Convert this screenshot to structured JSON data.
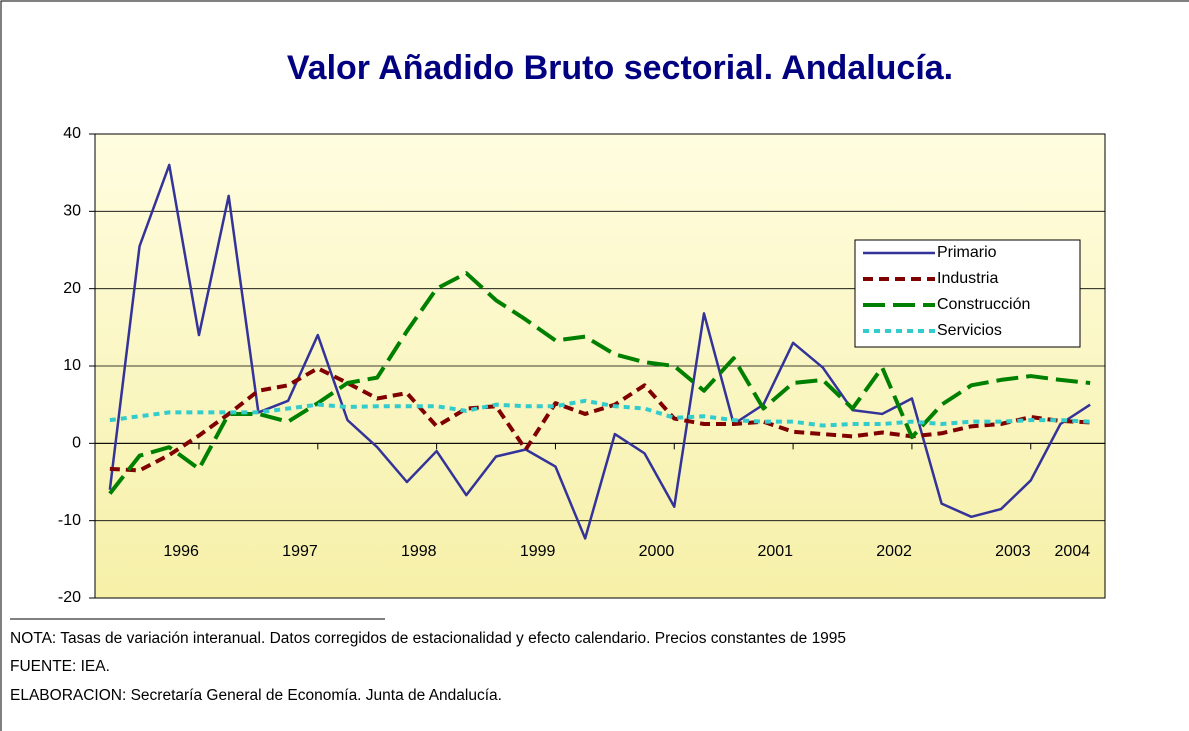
{
  "chart_data": {
    "type": "line",
    "title": "Valor Añadido Bruto sectorial. Andalucía.",
    "categories": [
      null,
      null,
      "1996",
      null,
      null,
      null,
      "1997",
      null,
      null,
      null,
      "1998",
      null,
      null,
      null,
      "1999",
      null,
      null,
      null,
      "2000",
      null,
      null,
      null,
      "2001",
      null,
      null,
      null,
      "2002",
      null,
      null,
      null,
      "2003",
      null,
      "2004",
      null
    ],
    "series": [
      {
        "name": "Primario",
        "color": "#333399",
        "style": "solid",
        "values": [
          -6,
          25.5,
          36,
          14,
          32,
          4,
          5.5,
          14,
          3,
          -0.5,
          -5,
          -1,
          -6.7,
          -1.7,
          -0.8,
          -3,
          -12.3,
          1.2,
          -1.3,
          -8.2,
          16.8,
          2.5,
          5,
          13,
          9.8,
          4.3,
          3.8,
          5.8,
          -7.8,
          -9.5,
          -8.5,
          -4.8,
          2.5,
          5
        ]
      },
      {
        "name": "Industria",
        "color": "#800000",
        "style": "dashed",
        "values": [
          -3.3,
          -3.5,
          -1.5,
          1,
          3.8,
          6.8,
          7.5,
          9.7,
          7.8,
          5.8,
          6.5,
          2.2,
          4.5,
          4.8,
          -0.8,
          5.2,
          3.8,
          5,
          7.5,
          3.2,
          2.5,
          2.5,
          2.8,
          1.5,
          1.2,
          0.9,
          1.4,
          0.9,
          1.3,
          2.2,
          2.5,
          3.4,
          2.9,
          2.7
        ]
      },
      {
        "name": "Construcción",
        "color": "#008000",
        "style": "longdash",
        "values": [
          -6.5,
          -1.6,
          -0.5,
          -3.3,
          3.8,
          3.8,
          2.8,
          5.2,
          7.8,
          8.5,
          14.5,
          20,
          22,
          18.5,
          16,
          13.3,
          13.8,
          11.5,
          10.5,
          10,
          6.8,
          11,
          4.5,
          7.8,
          8.2,
          4.5,
          9.8,
          0.8,
          5,
          7.5,
          8.2,
          8.7,
          8.2,
          7.8
        ]
      },
      {
        "name": "Servicios",
        "color": "#33CCCC",
        "style": "dotted",
        "values": [
          3,
          3.5,
          4,
          4,
          4,
          4,
          4.5,
          5,
          4.7,
          4.8,
          4.8,
          4.8,
          4.2,
          5,
          4.8,
          4.8,
          5.5,
          4.8,
          4.5,
          3.3,
          3.5,
          3,
          2.8,
          2.8,
          2.3,
          2.5,
          2.5,
          2.8,
          2.5,
          2.8,
          2.8,
          3,
          3,
          2.8
        ]
      }
    ],
    "ylim": [
      -20,
      40
    ],
    "yticks": [
      -20,
      -10,
      0,
      10,
      20,
      30,
      40
    ],
    "grid": true,
    "legend": "right"
  },
  "notes": [
    "NOTA: Tasas de variación interanual. Datos corregidos de estacionalidad y efecto calendario. Precios constantes de 1995",
    "FUENTE: IEA.",
    "ELABORACION: Secretaría General de Economía. Junta de Andalucía."
  ]
}
